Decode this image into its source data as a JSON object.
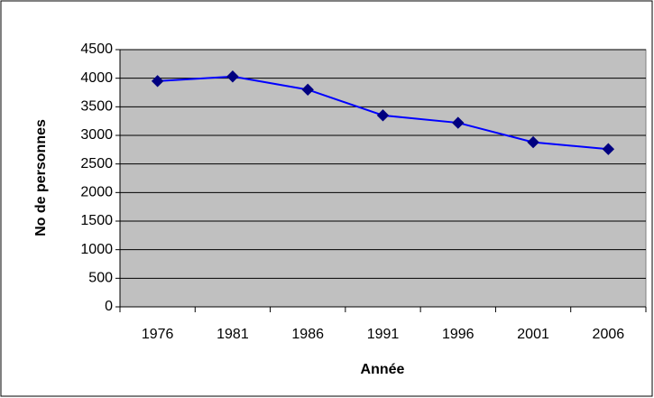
{
  "chart_data": {
    "type": "line",
    "x_label": "Année",
    "y_label": "No de personnes",
    "categories": [
      "1976",
      "1981",
      "1986",
      "1991",
      "1996",
      "2001",
      "2006"
    ],
    "series": [
      {
        "name": "No de personnes",
        "color": "#0000ff",
        "marker_color": "#000080",
        "values": [
          3950,
          4030,
          3800,
          3350,
          3220,
          2880,
          2760
        ]
      }
    ],
    "ylim": [
      0,
      4500
    ],
    "yticks": [
      0,
      500,
      1000,
      1500,
      2000,
      2500,
      3000,
      3500,
      4000,
      4500
    ],
    "grid": true,
    "plot_background": "#c0c0c0"
  }
}
